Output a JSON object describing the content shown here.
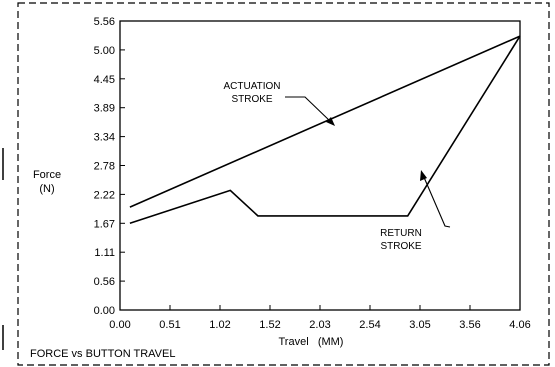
{
  "chart_data": {
    "type": "line",
    "title": "FORCE vs BUTTON TRAVEL",
    "xlabel": "Travel   (MM)",
    "ylabel_lines": [
      "Force",
      "(N)"
    ],
    "xlim": [
      0.0,
      4.06
    ],
    "ylim": [
      0.0,
      5.56
    ],
    "x_ticks": [
      "0.00",
      "0.51",
      "1.02",
      "1.52",
      "2.03",
      "2.54",
      "3.05",
      "3.56",
      "4.06"
    ],
    "y_ticks": [
      "0.00",
      "0.56",
      "1.11",
      "1.67",
      "2.22",
      "2.78",
      "3.34",
      "3.89",
      "4.45",
      "5.00",
      "5.56"
    ],
    "grid": false,
    "series": [
      {
        "name": "ACTUATION STROKE",
        "label_lines": [
          "ACTUATION",
          "STROKE"
        ],
        "points": [
          [
            0.1,
            1.98
          ],
          [
            4.06,
            5.27
          ]
        ]
      },
      {
        "name": "RETURN STROKE",
        "label_lines": [
          "RETURN",
          "STROKE"
        ],
        "points": [
          [
            0.1,
            1.67
          ],
          [
            1.12,
            2.3
          ],
          [
            1.4,
            1.81
          ],
          [
            2.92,
            1.81
          ],
          [
            4.06,
            5.27
          ]
        ]
      }
    ]
  }
}
